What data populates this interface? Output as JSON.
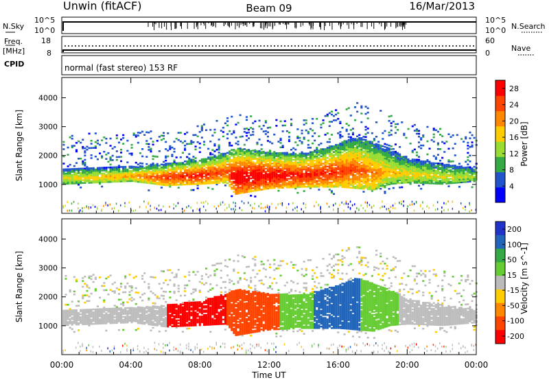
{
  "header": {
    "station": "Unwin (fitACF)",
    "beam": "Beam 09",
    "date": "16/Mar/2013"
  },
  "noise_panel": {
    "left_label": "N.Sky",
    "right_label": "N.Search",
    "left_ticks": [
      "10^5",
      "10^0"
    ],
    "right_ticks": [
      "10^5",
      "10^0"
    ]
  },
  "freq_panel": {
    "left_label": "Freq.",
    "left_unit": "[MHz]",
    "right_label": "Nave",
    "left_ticks": [
      "18",
      "8"
    ],
    "right_ticks": [
      "60",
      "0"
    ]
  },
  "cpid_panel": {
    "label": "CPID",
    "mode": "normal (fast stereo) 153 RF"
  },
  "x_axis": {
    "label": "Time UT",
    "ticks": [
      "00:00",
      "04:00",
      "08:00",
      "12:00",
      "16:00",
      "20:00",
      "00:00"
    ]
  },
  "colors": {
    "ground_scatter": "#bdbdbd",
    "power_scale": [
      "#0000ff",
      "#2255cc",
      "#33aa44",
      "#99dd33",
      "#ffcc00",
      "#ff8800",
      "#ff4400",
      "#ff0000"
    ],
    "velocity_scale": [
      "#2233cc",
      "#2266bb",
      "#33aa44",
      "#66cc33",
      "#bbbbbb",
      "#ffcc00",
      "#ff8800",
      "#ff4400",
      "#ff0000"
    ]
  },
  "chart_data": [
    {
      "type": "heatmap",
      "title": "",
      "xlabel": "",
      "ylabel": "Slant Range [km]",
      "x_range_hours": [
        0,
        24
      ],
      "y_range_km": [
        0,
        4700
      ],
      "y_ticks": [
        "1000",
        "2000",
        "3000",
        "4000"
      ],
      "colorbar_label": "Power [dB]",
      "colorbar_ticks": [
        "4",
        "8",
        "12",
        "16",
        "20",
        "24",
        "28"
      ],
      "colorbar_range": [
        0,
        30
      ],
      "echo_band": {
        "hours": [
          0,
          2,
          4,
          6,
          8,
          9.5,
          10,
          12,
          14,
          16,
          17,
          18,
          19,
          20,
          22,
          24
        ],
        "lower_km": [
          1000,
          1050,
          1100,
          950,
          1000,
          1050,
          650,
          850,
          900,
          900,
          850,
          800,
          1000,
          1050,
          1000,
          1100
        ],
        "upper_km": [
          1550,
          1550,
          1600,
          1700,
          1850,
          2100,
          2250,
          2100,
          2050,
          2400,
          2650,
          2450,
          2200,
          1900,
          1700,
          1550
        ],
        "peak_power_db": [
          14,
          16,
          18,
          24,
          26,
          22,
          30,
          28,
          26,
          24,
          22,
          20,
          16,
          15,
          14,
          12
        ]
      }
    },
    {
      "type": "heatmap",
      "title": "",
      "xlabel": "Time UT",
      "ylabel": "Slant Range [km]",
      "x_range_hours": [
        0,
        24
      ],
      "y_range_km": [
        0,
        4700
      ],
      "y_ticks": [
        "1000",
        "2000",
        "3000",
        "4000"
      ],
      "colorbar_label": "Velocity [m s^-1]",
      "colorbar_ticks": [
        "200",
        "100",
        "50",
        "15",
        "-15",
        "-50",
        "-100",
        "-200"
      ],
      "colorbar_range": [
        -250,
        250
      ],
      "velocity_segments": [
        {
          "from_hour": 0,
          "to_hour": 6,
          "velocity": 0
        },
        {
          "from_hour": 6,
          "to_hour": 9.5,
          "velocity": -220
        },
        {
          "from_hour": 9.5,
          "to_hour": 12.5,
          "velocity": -180
        },
        {
          "from_hour": 12.5,
          "to_hour": 14.5,
          "velocity": 60
        },
        {
          "from_hour": 14.5,
          "to_hour": 17.2,
          "velocity": 180
        },
        {
          "from_hour": 17.2,
          "to_hour": 19.5,
          "velocity": 40
        },
        {
          "from_hour": 19.5,
          "to_hour": 24,
          "velocity": 0
        }
      ]
    }
  ]
}
